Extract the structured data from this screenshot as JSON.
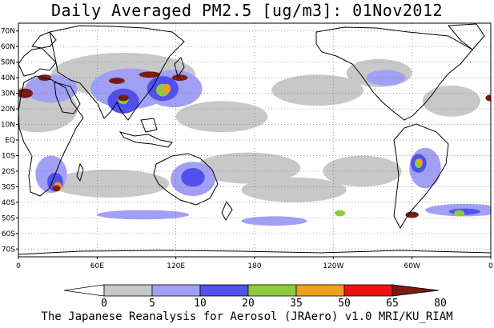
{
  "title": "Daily Averaged PM2.5 [ug/m3]: 01Nov2012",
  "credit": "The Japanese Reanalysis for Aerosol (JRAero) v1.0 MRI/KU_RIAM",
  "map": {
    "projection": "equirectangular",
    "lon_range": [
      0,
      360
    ],
    "lat_range": [
      -75,
      75
    ],
    "lat_labels": [
      "70N",
      "60N",
      "50N",
      "40N",
      "30N",
      "20N",
      "10N",
      "EQ",
      "10S",
      "20S",
      "30S",
      "40S",
      "50S",
      "60S",
      "70S"
    ],
    "lat_values": [
      70,
      60,
      50,
      40,
      30,
      20,
      10,
      0,
      -10,
      -20,
      -30,
      -40,
      -50,
      -60,
      -70
    ],
    "lon_labels": [
      "0",
      "60E",
      "120E",
      "180",
      "120W",
      "60W",
      "0"
    ],
    "lon_values": [
      0,
      60,
      120,
      180,
      240,
      300,
      360
    ],
    "grid": "dotted"
  },
  "colorbar": {
    "ticks": [
      "0",
      "5",
      "10",
      "20",
      "35",
      "50",
      "65",
      "80"
    ],
    "colors": [
      "#ffffff",
      "#c8c8c8",
      "#a0a0f5",
      "#5050ec",
      "#8ccc3c",
      "#f0a020",
      "#f01010",
      "#7a1a10"
    ]
  },
  "pm25_fields": [
    {
      "level": 1,
      "color": "#c8c8c8",
      "regions": [
        {
          "lon": 15,
          "lat": 20,
          "rlon": 30,
          "rlat": 15
        },
        {
          "lon": 80,
          "lat": 42,
          "rlon": 55,
          "rlat": 14
        },
        {
          "lon": 155,
          "lat": 15,
          "rlon": 35,
          "rlat": 10
        },
        {
          "lon": 175,
          "lat": -18,
          "rlon": 40,
          "rlat": 10
        },
        {
          "lon": 228,
          "lat": 32,
          "rlon": 35,
          "rlat": 10
        },
        {
          "lon": 262,
          "lat": -20,
          "rlon": 30,
          "rlat": 10
        },
        {
          "lon": 330,
          "lat": 25,
          "rlon": 22,
          "rlat": 10
        },
        {
          "lon": 70,
          "lat": -28,
          "rlon": 45,
          "rlat": 9
        },
        {
          "lon": 275,
          "lat": 43,
          "rlon": 25,
          "rlat": 9
        },
        {
          "lon": 210,
          "lat": -32,
          "rlon": 40,
          "rlat": 8
        }
      ]
    },
    {
      "level": 2,
      "color": "#a0a0f5",
      "regions": [
        {
          "lon": 25,
          "lat": 33,
          "rlon": 20,
          "rlat": 9
        },
        {
          "lon": 85,
          "lat": 33,
          "rlon": 30,
          "rlat": 13
        },
        {
          "lon": 118,
          "lat": 33,
          "rlon": 22,
          "rlat": 12
        },
        {
          "lon": 25,
          "lat": -22,
          "rlon": 12,
          "rlat": 12
        },
        {
          "lon": 133,
          "lat": -25,
          "rlon": 17,
          "rlat": 11
        },
        {
          "lon": 310,
          "lat": -18,
          "rlon": 12,
          "rlat": 13
        },
        {
          "lon": 195,
          "lat": -52,
          "rlon": 25,
          "rlat": 3
        },
        {
          "lon": 340,
          "lat": -45,
          "rlon": 30,
          "rlat": 4
        },
        {
          "lon": 280,
          "lat": 40,
          "rlon": 15,
          "rlat": 5
        },
        {
          "lon": 95,
          "lat": -48,
          "rlon": 35,
          "rlat": 3
        }
      ]
    },
    {
      "level": 3,
      "color": "#5050ec",
      "regions": [
        {
          "lon": 80,
          "lat": 25,
          "rlon": 12,
          "rlat": 8
        },
        {
          "lon": 110,
          "lat": 33,
          "rlon": 12,
          "rlat": 8
        },
        {
          "lon": 28,
          "lat": -27,
          "rlon": 6,
          "rlat": 6
        },
        {
          "lon": 133,
          "lat": -24,
          "rlon": 9,
          "rlat": 6
        },
        {
          "lon": 305,
          "lat": -15,
          "rlon": 6,
          "rlat": 6
        },
        {
          "lon": 340,
          "lat": -46,
          "rlon": 12,
          "rlat": 2
        }
      ]
    },
    {
      "level": 4,
      "color": "#8ccc3c",
      "regions": [
        {
          "lon": 110,
          "lat": 32,
          "rlon": 5,
          "rlat": 4
        },
        {
          "lon": 80,
          "lat": 26,
          "rlon": 4,
          "rlat": 3
        },
        {
          "lon": 305,
          "lat": -15,
          "rlon": 3,
          "rlat": 3
        },
        {
          "lon": 245,
          "lat": -47,
          "rlon": 4,
          "rlat": 2
        },
        {
          "lon": 336,
          "lat": -47,
          "rlon": 4,
          "rlat": 2
        }
      ]
    },
    {
      "level": 5,
      "color": "#f0a020",
      "regions": [
        {
          "lon": 113,
          "lat": 33,
          "rlon": 3,
          "rlat": 3
        },
        {
          "lon": 30,
          "lat": -30,
          "rlon": 3,
          "rlat": 3
        },
        {
          "lon": 306,
          "lat": -14,
          "rlon": 2,
          "rlat": 2
        }
      ]
    },
    {
      "level": 7,
      "color": "#7a1a10",
      "regions": [
        {
          "lon": 5,
          "lat": 30,
          "rlon": 6,
          "rlat": 3
        },
        {
          "lon": 20,
          "lat": 40,
          "rlon": 5,
          "rlat": 2
        },
        {
          "lon": 75,
          "lat": 38,
          "rlon": 6,
          "rlat": 2
        },
        {
          "lon": 100,
          "lat": 42,
          "rlon": 8,
          "rlat": 2
        },
        {
          "lon": 123,
          "lat": 40,
          "rlon": 6,
          "rlat": 2
        },
        {
          "lon": 80,
          "lat": 27,
          "rlon": 4,
          "rlat": 2
        },
        {
          "lon": 29,
          "lat": -31,
          "rlon": 3,
          "rlat": 2
        },
        {
          "lon": 300,
          "lat": -48,
          "rlon": 5,
          "rlat": 2
        },
        {
          "lon": 359,
          "lat": 27,
          "rlon": 3,
          "rlat": 2
        }
      ]
    }
  ]
}
